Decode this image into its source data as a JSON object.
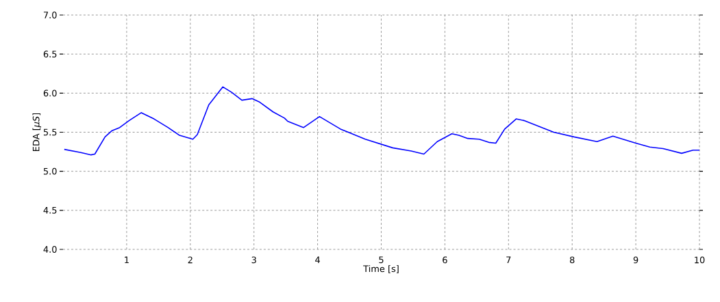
{
  "chart_data": {
    "type": "line",
    "xlabel": "Time [s]",
    "ylabel": "EDA [*μS*]",
    "xlim": [
      0,
      10
    ],
    "xticks": [
      1,
      2,
      3,
      4,
      5,
      6,
      7,
      8,
      9,
      10
    ],
    "ylim": [
      4,
      7
    ],
    "yticks": [
      {
        "value": 4,
        "label": "4.0"
      },
      {
        "value": 4.5,
        "label": "4.5"
      },
      {
        "value": 5,
        "label": "5.0"
      },
      {
        "value": 5.5,
        "label": "5.5"
      },
      {
        "value": 6,
        "label": "6.0"
      },
      {
        "value": 6.5,
        "label": "6.5"
      },
      {
        "value": 7,
        "label": "7.0"
      }
    ],
    "grid": true,
    "series": [
      {
        "color": "#0000ff",
        "x": [
          0.02,
          0.28,
          0.44,
          0.5,
          0.66,
          0.77,
          0.89,
          1.04,
          1.23,
          1.43,
          1.65,
          1.83,
          2.04,
          2.11,
          2.29,
          2.51,
          2.65,
          2.81,
          2.97,
          3.08,
          3.3,
          3.48,
          3.53,
          3.78,
          4.03,
          4.36,
          4.75,
          5.18,
          5.47,
          5.67,
          5.88,
          6.11,
          6.22,
          6.36,
          6.54,
          6.69,
          6.8,
          6.94,
          7.12,
          7.24,
          7.71,
          8.03,
          8.39,
          8.64,
          9.0,
          9.22,
          9.43,
          9.72,
          9.9,
          10.0
        ],
        "values": [
          5.28,
          5.24,
          5.21,
          5.22,
          5.44,
          5.52,
          5.56,
          5.65,
          5.75,
          5.67,
          5.56,
          5.46,
          5.41,
          5.47,
          5.85,
          6.08,
          6.01,
          5.91,
          5.93,
          5.89,
          5.76,
          5.68,
          5.64,
          5.56,
          5.7,
          5.54,
          5.41,
          5.3,
          5.26,
          5.22,
          5.38,
          5.48,
          5.46,
          5.42,
          5.41,
          5.37,
          5.36,
          5.54,
          5.67,
          5.65,
          5.5,
          5.44,
          5.38,
          5.45,
          5.36,
          5.31,
          5.29,
          5.23,
          5.27,
          5.27
        ]
      }
    ]
  }
}
